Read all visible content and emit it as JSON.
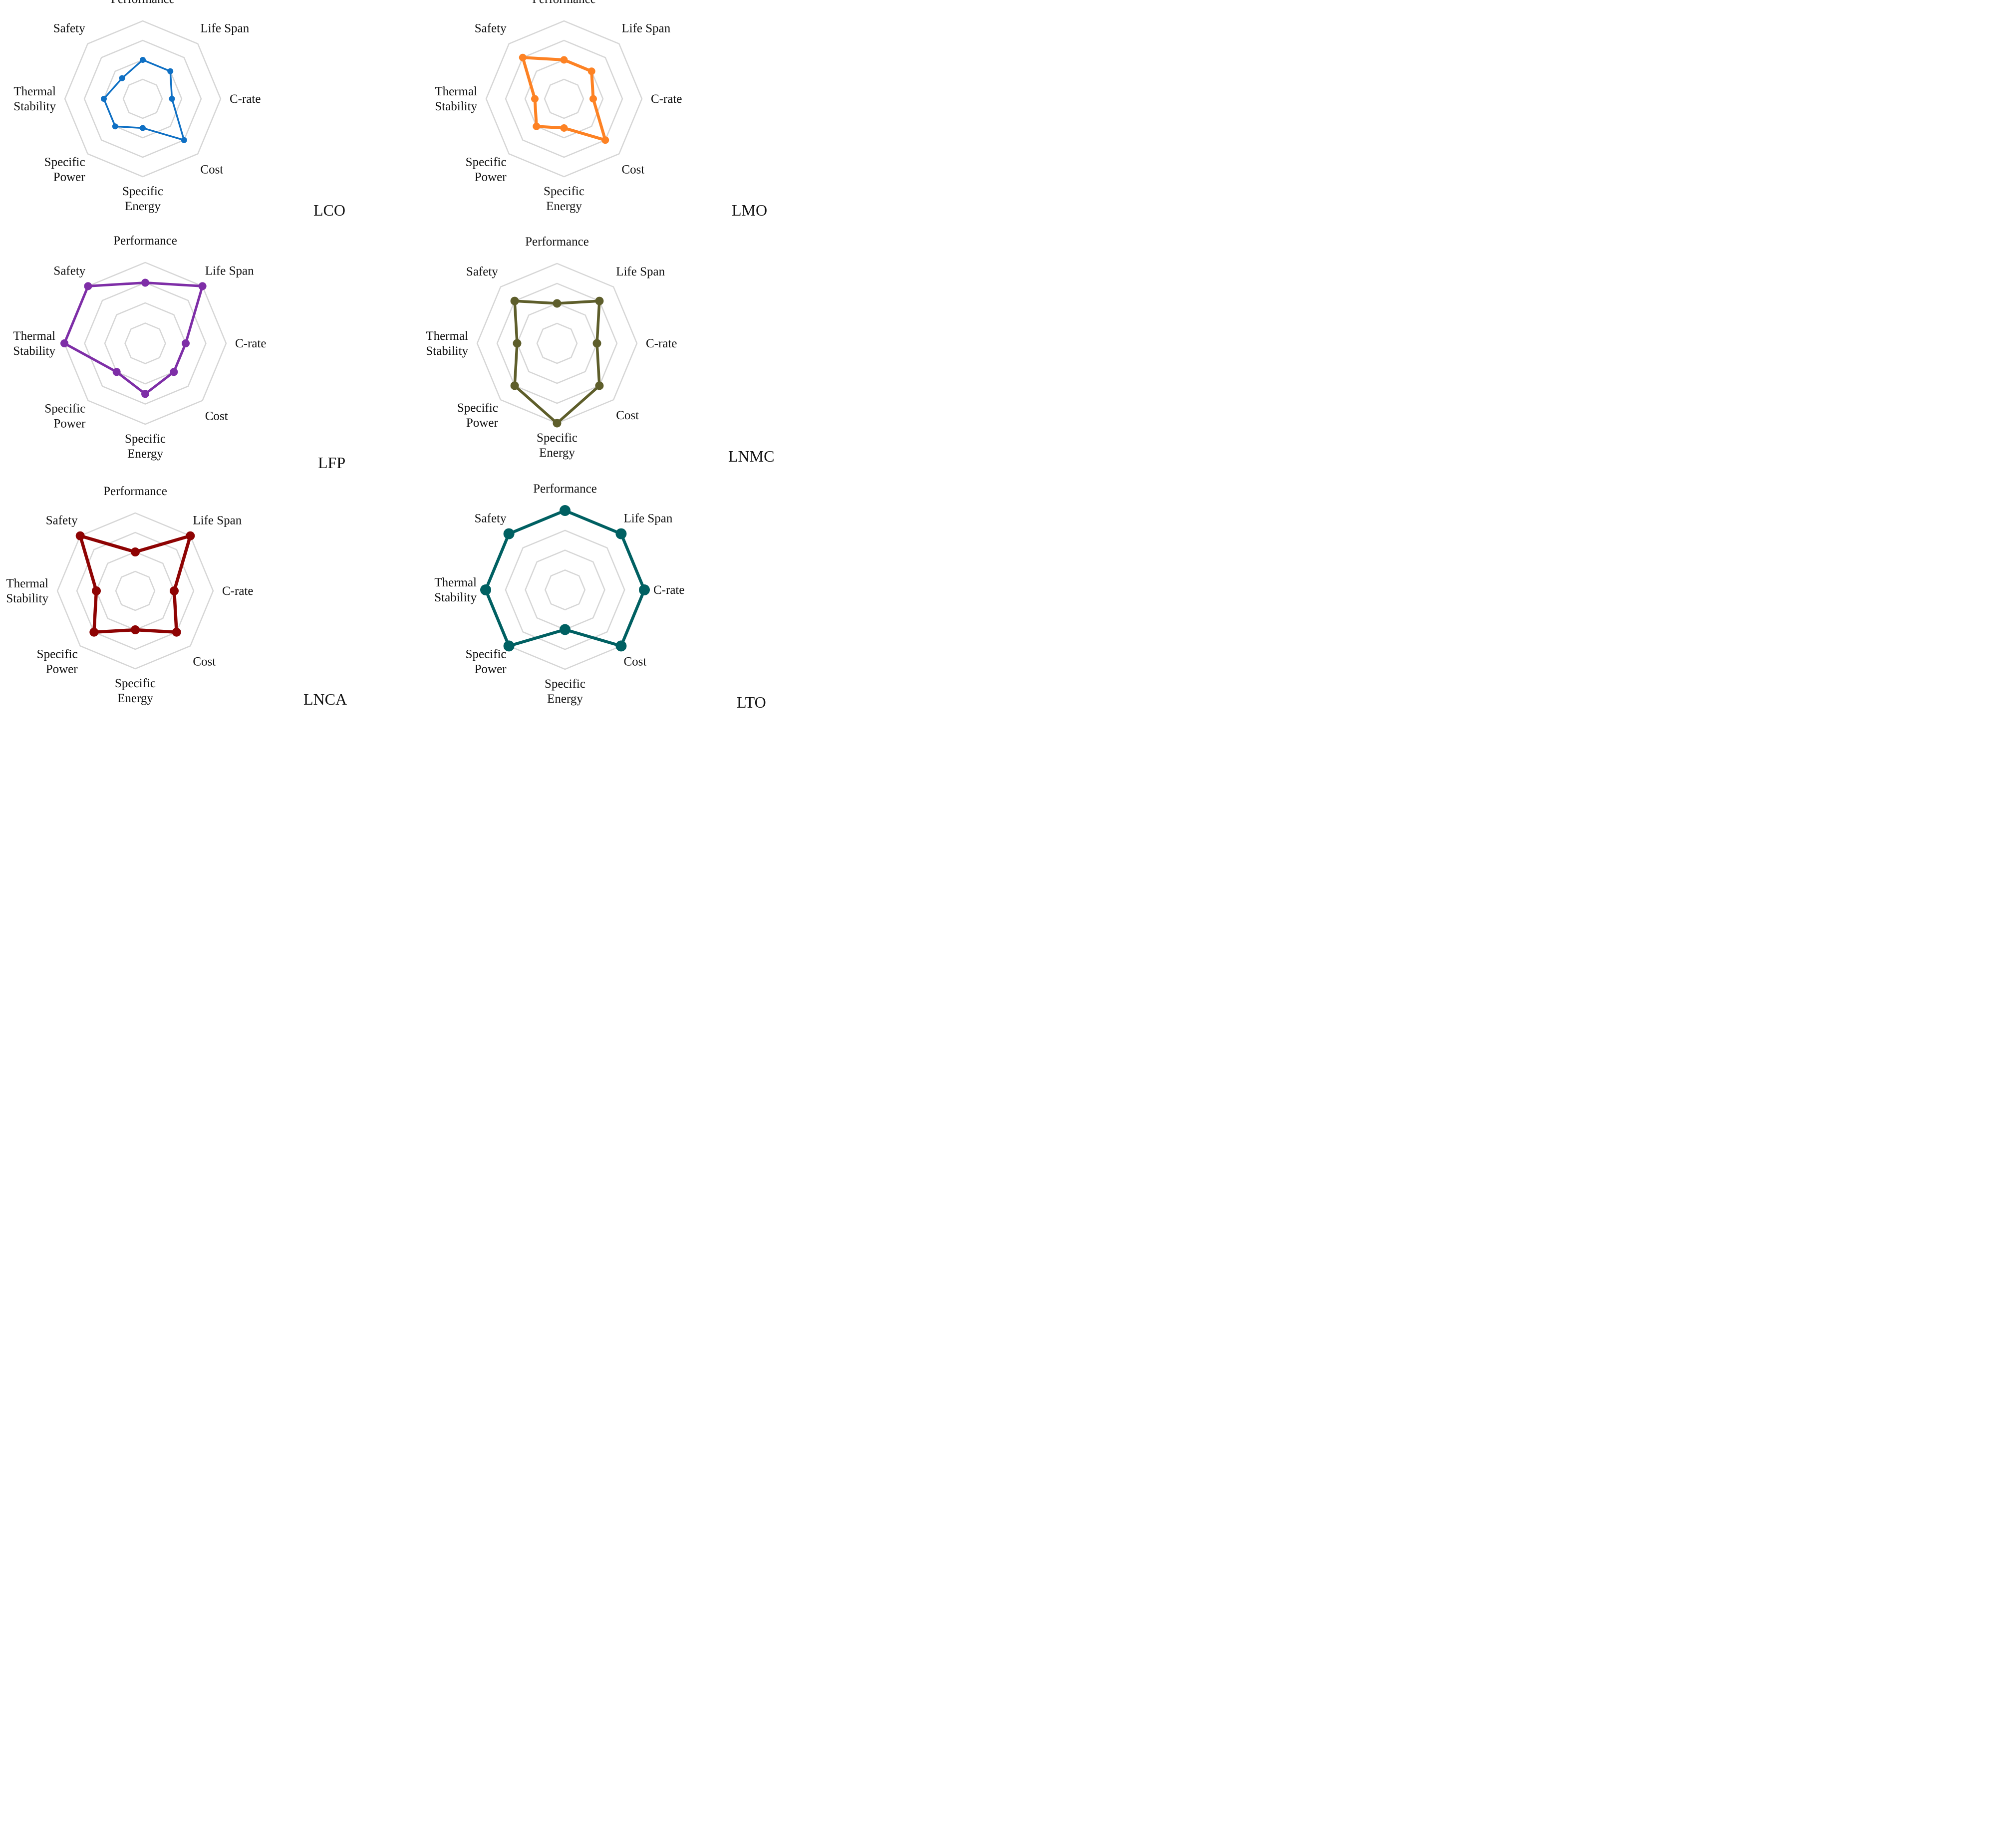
{
  "chart_data": [
    {
      "type": "radar",
      "title": "LCO",
      "axes": [
        "Performance",
        "Life Span",
        "C-rate",
        "Cost",
        "Specific\nEnergy",
        "Specific\nPower",
        "Thermal\nStability",
        "Safety"
      ],
      "ring_levels": [
        1,
        2,
        3,
        4
      ],
      "range": [
        0,
        4
      ],
      "grid": true,
      "color": "#0f70c4",
      "values": [
        2,
        2,
        1.5,
        3,
        1.5,
        2,
        2,
        1.5
      ]
    },
    {
      "type": "radar",
      "title": "LMO",
      "axes": [
        "Performance",
        "Life Span",
        "C-rate",
        "Cost",
        "Specific\nEnergy",
        "Specific\nPower",
        "Thermal\nStability",
        "Safety"
      ],
      "ring_levels": [
        1,
        2,
        3,
        4
      ],
      "range": [
        0,
        4
      ],
      "grid": true,
      "color": "#fd8224",
      "values": [
        2,
        2,
        1.5,
        3,
        1.5,
        2,
        1.5,
        3
      ]
    },
    {
      "type": "radar",
      "title": "LFP",
      "axes": [
        "Performance",
        "Life Span",
        "C-rate",
        "Cost",
        "Specific\nEnergy",
        "Specific\nPower",
        "Thermal\nStability",
        "Safety"
      ],
      "ring_levels": [
        1,
        2,
        3,
        4
      ],
      "range": [
        0,
        4
      ],
      "grid": true,
      "color": "#7e2ea7",
      "values": [
        3,
        4,
        2,
        2,
        2.5,
        2,
        4,
        4
      ]
    },
    {
      "type": "radar",
      "title": "LNMC",
      "axes": [
        "Performance",
        "Life Span",
        "C-rate",
        "Cost",
        "Specific\nEnergy",
        "Specific\nPower",
        "Thermal\nStability",
        "Safety"
      ],
      "ring_levels": [
        1,
        2,
        3,
        4
      ],
      "range": [
        0,
        4
      ],
      "grid": true,
      "color": "#5e5e2b",
      "values": [
        2,
        3,
        2,
        3,
        4,
        3,
        2,
        3
      ]
    },
    {
      "type": "radar",
      "title": "LNCA",
      "axes": [
        "Performance",
        "Life Span",
        "C-rate",
        "Cost",
        "Specific\nEnergy",
        "Specific\nPower",
        "Thermal\nStability",
        "Safety"
      ],
      "ring_levels": [
        1,
        2,
        3,
        4
      ],
      "range": [
        0,
        4
      ],
      "grid": true,
      "color": "#8e0303",
      "values": [
        2,
        4,
        2,
        3,
        2,
        3,
        2,
        4
      ]
    },
    {
      "type": "radar",
      "title": "LTO",
      "axes": [
        "Performance",
        "Life Span",
        "C-rate",
        "Cost",
        "Specific\nEnergy",
        "Specific\nPower",
        "Thermal\nStability",
        "Safety"
      ],
      "ring_levels": [
        1,
        2,
        3,
        4
      ],
      "range": [
        0,
        4
      ],
      "grid": true,
      "color": "#006062",
      "values": [
        4,
        4,
        4,
        4,
        2,
        4,
        4,
        4
      ]
    }
  ]
}
